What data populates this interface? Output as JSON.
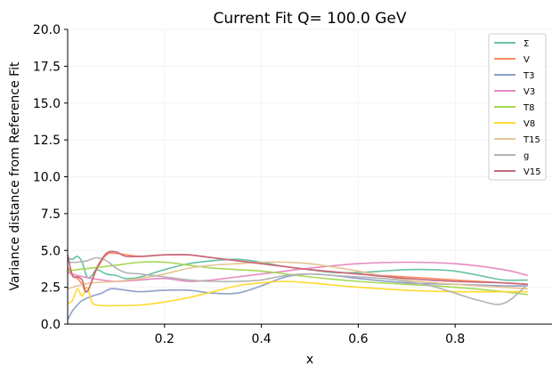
{
  "chart_data": {
    "type": "line",
    "title": "Current Fit Q= 100.0 GeV",
    "xlabel": "x",
    "ylabel": "Variance distance from Reference Fit",
    "xlim": [
      0.0,
      1.0
    ],
    "ylim": [
      0,
      20
    ],
    "xticks": [
      "0.2",
      "0.4",
      "0.6",
      "0.8"
    ],
    "yticks": [
      "0.0",
      "2.5",
      "5.0",
      "7.5",
      "10.0",
      "12.5",
      "15.0",
      "17.5",
      "20.0"
    ],
    "grid": true,
    "legend_position": "top-right",
    "series": [
      {
        "name": "Σ",
        "color": "#66c2a5",
        "x": [
          0.0,
          0.01,
          0.02,
          0.03,
          0.04,
          0.05,
          0.06,
          0.08,
          0.1,
          0.12,
          0.15,
          0.2,
          0.25,
          0.3,
          0.35,
          0.4,
          0.45,
          0.5,
          0.55,
          0.6,
          0.65,
          0.7,
          0.75,
          0.8,
          0.85,
          0.9,
          0.95
        ],
        "y": [
          4.5,
          4.4,
          4.6,
          4.2,
          3.2,
          3.3,
          3.7,
          3.4,
          3.3,
          3.1,
          3.2,
          3.7,
          4.1,
          4.3,
          4.4,
          4.2,
          3.9,
          3.7,
          3.5,
          3.5,
          3.6,
          3.7,
          3.7,
          3.6,
          3.3,
          3.0,
          3.0
        ]
      },
      {
        "name": "V",
        "color": "#fc8d62",
        "x": [
          0.0,
          0.01,
          0.02,
          0.03,
          0.04,
          0.06,
          0.08,
          0.1,
          0.15,
          0.2,
          0.25,
          0.3,
          0.35,
          0.4,
          0.45,
          0.5,
          0.6,
          0.7,
          0.8,
          0.9,
          0.95
        ],
        "y": [
          3.9,
          3.3,
          3.1,
          2.7,
          2.2,
          3.7,
          4.7,
          4.8,
          4.6,
          4.7,
          4.7,
          4.5,
          4.3,
          4.1,
          3.9,
          3.7,
          3.4,
          3.2,
          3.0,
          2.8,
          2.7
        ]
      },
      {
        "name": "T3",
        "color": "#8da0cb",
        "x": [
          0.0,
          0.01,
          0.02,
          0.03,
          0.05,
          0.07,
          0.09,
          0.12,
          0.15,
          0.2,
          0.25,
          0.3,
          0.35,
          0.4,
          0.45,
          0.5,
          0.55,
          0.6,
          0.7,
          0.8,
          0.9,
          0.95
        ],
        "y": [
          0.3,
          0.9,
          1.3,
          1.6,
          1.9,
          2.1,
          2.4,
          2.3,
          2.2,
          2.3,
          2.3,
          2.1,
          2.1,
          2.6,
          3.2,
          3.4,
          3.3,
          3.1,
          2.8,
          2.7,
          2.6,
          2.6
        ]
      },
      {
        "name": "V3",
        "color": "#e78ac3",
        "x": [
          0.0,
          0.02,
          0.05,
          0.1,
          0.15,
          0.2,
          0.25,
          0.3,
          0.35,
          0.4,
          0.45,
          0.5,
          0.6,
          0.7,
          0.8,
          0.9,
          0.95
        ],
        "y": [
          3.5,
          3.3,
          3.1,
          2.9,
          3.0,
          3.1,
          2.9,
          3.0,
          3.2,
          3.4,
          3.6,
          3.8,
          4.1,
          4.2,
          4.1,
          3.7,
          3.3
        ]
      },
      {
        "name": "T8",
        "color": "#a6d854",
        "x": [
          0.0,
          0.02,
          0.05,
          0.1,
          0.15,
          0.2,
          0.25,
          0.3,
          0.35,
          0.4,
          0.45,
          0.5,
          0.6,
          0.7,
          0.8,
          0.9,
          0.95
        ],
        "y": [
          3.6,
          3.7,
          3.8,
          4.0,
          4.2,
          4.2,
          4.0,
          3.8,
          3.7,
          3.6,
          3.4,
          3.2,
          2.9,
          2.7,
          2.5,
          2.2,
          2.0
        ]
      },
      {
        "name": "V8",
        "color": "#ffd92f",
        "x": [
          0.0,
          0.01,
          0.02,
          0.03,
          0.04,
          0.05,
          0.06,
          0.08,
          0.1,
          0.15,
          0.2,
          0.25,
          0.3,
          0.35,
          0.4,
          0.45,
          0.5,
          0.6,
          0.7,
          0.8,
          0.9,
          0.95
        ],
        "y": [
          1.4,
          1.6,
          2.4,
          1.9,
          2.5,
          1.5,
          1.3,
          1.25,
          1.25,
          1.3,
          1.5,
          1.8,
          2.2,
          2.6,
          2.8,
          2.9,
          2.8,
          2.5,
          2.3,
          2.2,
          2.2,
          2.2
        ]
      },
      {
        "name": "T15",
        "color": "#e5c494",
        "x": [
          0.0,
          0.02,
          0.05,
          0.1,
          0.15,
          0.2,
          0.25,
          0.3,
          0.35,
          0.4,
          0.45,
          0.5,
          0.6,
          0.7,
          0.8,
          0.9,
          0.95
        ],
        "y": [
          2.4,
          2.6,
          2.8,
          2.9,
          3.1,
          3.4,
          3.8,
          4.0,
          4.1,
          4.2,
          4.2,
          4.1,
          3.6,
          3.0,
          2.7,
          2.5,
          2.4
        ]
      },
      {
        "name": "g",
        "color": "#b3b3b3",
        "x": [
          0.0,
          0.02,
          0.04,
          0.06,
          0.08,
          0.1,
          0.12,
          0.15,
          0.2,
          0.25,
          0.3,
          0.35,
          0.4,
          0.45,
          0.5,
          0.55,
          0.6,
          0.65,
          0.7,
          0.75,
          0.8,
          0.85,
          0.9,
          0.95
        ],
        "y": [
          4.2,
          4.2,
          4.3,
          4.5,
          4.3,
          3.8,
          3.5,
          3.4,
          3.2,
          3.0,
          2.9,
          2.9,
          3.0,
          3.3,
          3.4,
          3.3,
          3.2,
          3.1,
          2.9,
          2.6,
          2.1,
          1.6,
          1.4,
          2.7
        ]
      },
      {
        "name": "V15",
        "color": "#c5687d",
        "x": [
          0.0,
          0.01,
          0.02,
          0.03,
          0.04,
          0.06,
          0.08,
          0.1,
          0.12,
          0.15,
          0.2,
          0.25,
          0.3,
          0.35,
          0.4,
          0.45,
          0.5,
          0.6,
          0.7,
          0.8,
          0.9,
          0.95
        ],
        "y": [
          4.7,
          3.3,
          3.2,
          3.0,
          2.2,
          3.8,
          4.8,
          4.9,
          4.6,
          4.6,
          4.7,
          4.7,
          4.5,
          4.3,
          4.1,
          3.9,
          3.7,
          3.4,
          3.1,
          2.9,
          2.8,
          2.7
        ]
      }
    ]
  }
}
